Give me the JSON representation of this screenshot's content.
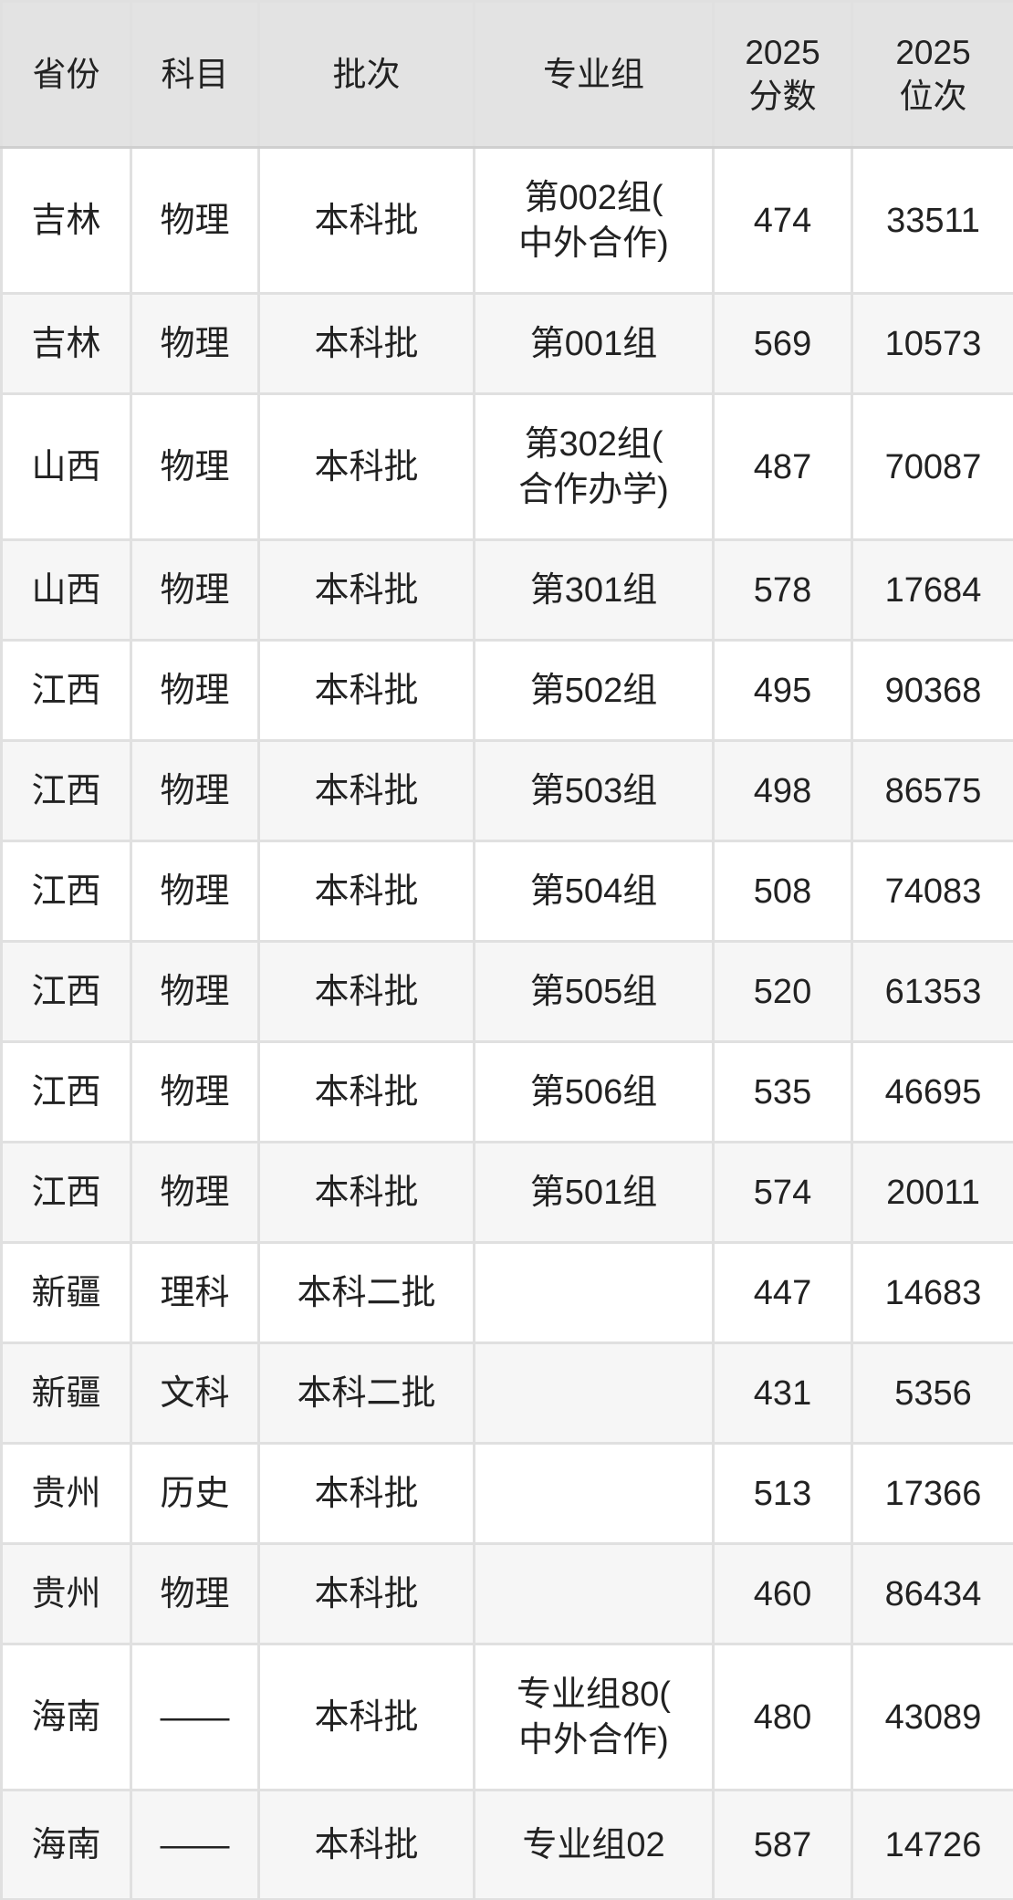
{
  "colors": {
    "header_bg": "#e3e3e3",
    "row_alt_bg": "#f6f6f6",
    "row_bg": "#ffffff",
    "border": "#e0e0e0",
    "text": "#222222"
  },
  "table": {
    "headers": {
      "province": "省份",
      "subject": "科目",
      "batch": "批次",
      "group": "专业组",
      "score": "2025\n分数",
      "rank": "2025\n位次"
    },
    "rows": [
      {
        "province": "吉林",
        "subject": "物理",
        "batch": "本科批",
        "group": "第002组(\n中外合作)",
        "score": "474",
        "rank": "33511"
      },
      {
        "province": "吉林",
        "subject": "物理",
        "batch": "本科批",
        "group": "第001组",
        "score": "569",
        "rank": "10573"
      },
      {
        "province": "山西",
        "subject": "物理",
        "batch": "本科批",
        "group": "第302组(\n合作办学)",
        "score": "487",
        "rank": "70087"
      },
      {
        "province": "山西",
        "subject": "物理",
        "batch": "本科批",
        "group": "第301组",
        "score": "578",
        "rank": "17684"
      },
      {
        "province": "江西",
        "subject": "物理",
        "batch": "本科批",
        "group": "第502组",
        "score": "495",
        "rank": "90368"
      },
      {
        "province": "江西",
        "subject": "物理",
        "batch": "本科批",
        "group": "第503组",
        "score": "498",
        "rank": "86575"
      },
      {
        "province": "江西",
        "subject": "物理",
        "batch": "本科批",
        "group": "第504组",
        "score": "508",
        "rank": "74083"
      },
      {
        "province": "江西",
        "subject": "物理",
        "batch": "本科批",
        "group": "第505组",
        "score": "520",
        "rank": "61353"
      },
      {
        "province": "江西",
        "subject": "物理",
        "batch": "本科批",
        "group": "第506组",
        "score": "535",
        "rank": "46695"
      },
      {
        "province": "江西",
        "subject": "物理",
        "batch": "本科批",
        "group": "第501组",
        "score": "574",
        "rank": "20011"
      },
      {
        "province": "新疆",
        "subject": "理科",
        "batch": "本科二批",
        "group": "",
        "score": "447",
        "rank": "14683"
      },
      {
        "province": "新疆",
        "subject": "文科",
        "batch": "本科二批",
        "group": "",
        "score": "431",
        "rank": "5356"
      },
      {
        "province": "贵州",
        "subject": "历史",
        "batch": "本科批",
        "group": "",
        "score": "513",
        "rank": "17366"
      },
      {
        "province": "贵州",
        "subject": "物理",
        "batch": "本科批",
        "group": "",
        "score": "460",
        "rank": "86434"
      },
      {
        "province": "海南",
        "subject": "——",
        "batch": "本科批",
        "group": "专业组80(\n中外合作)",
        "score": "480",
        "rank": "43089"
      },
      {
        "province": "海南",
        "subject": "——",
        "batch": "本科批",
        "group": "专业组02",
        "score": "587",
        "rank": "14726"
      }
    ]
  }
}
